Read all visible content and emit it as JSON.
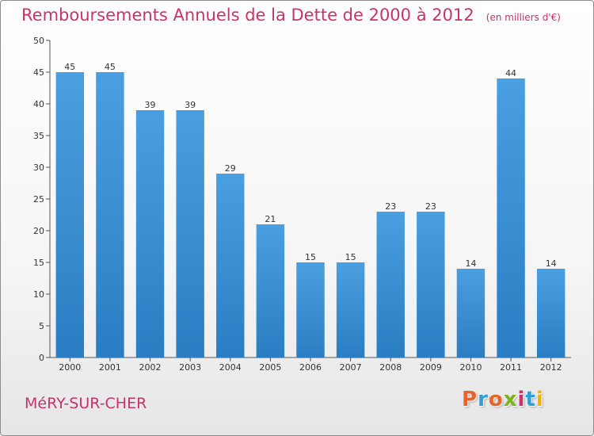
{
  "chart_data": {
    "type": "bar",
    "title": "Remboursements Annuels de la Dette de 2000 à 2012",
    "subtitle": "(en milliers d'€)",
    "categories": [
      "2000",
      "2001",
      "2002",
      "2003",
      "2004",
      "2005",
      "2006",
      "2007",
      "2008",
      "2009",
      "2010",
      "2011",
      "2012"
    ],
    "values": [
      45,
      45,
      39,
      39,
      29,
      21,
      15,
      15,
      23,
      23,
      14,
      44,
      14
    ],
    "ylim": [
      0,
      50
    ],
    "yticks": [
      0,
      5,
      10,
      15,
      20,
      25,
      30,
      35,
      40,
      45,
      50
    ],
    "grid": false,
    "bar_color": "#4a9fe0",
    "bar_color_dark": "#2a7dc2"
  },
  "footer": {
    "town": "MéRY-SUR-CHER",
    "brand": "Proxiti",
    "brand_colors": [
      "#e8642c",
      "#2f9fd8",
      "#e8642c",
      "#7ab51d",
      "#c7336a",
      "#2f9fd8",
      "#f0b400"
    ]
  }
}
